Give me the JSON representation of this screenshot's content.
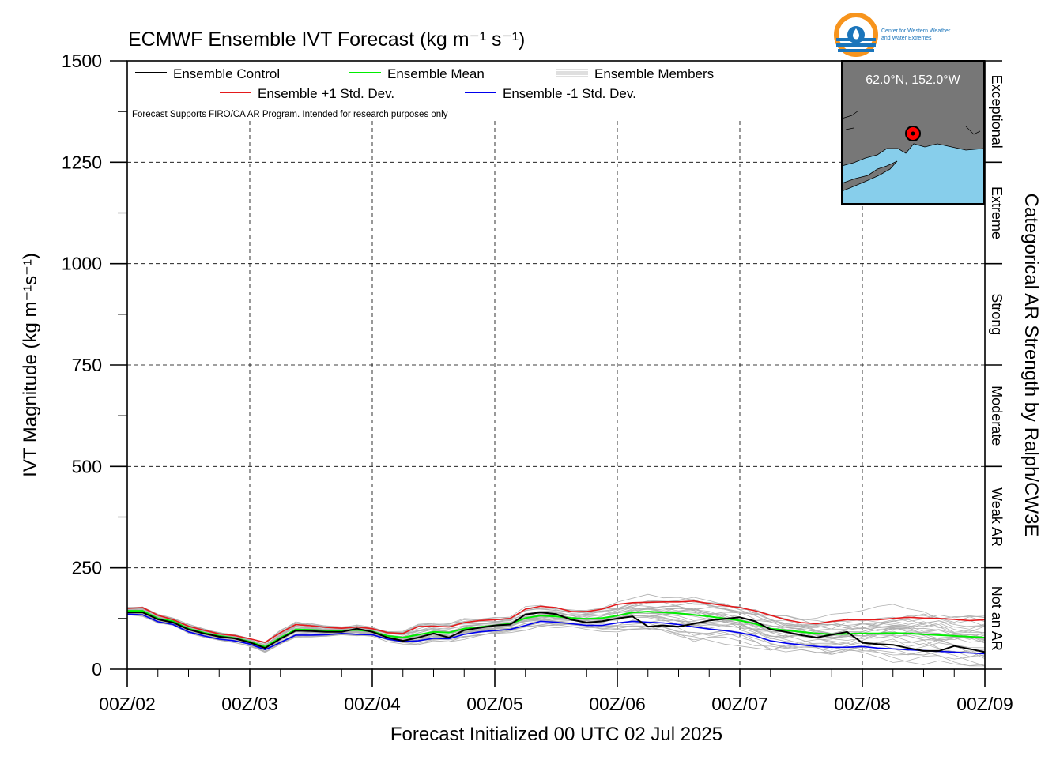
{
  "chart_data": {
    "type": "line",
    "title": "ECMWF Ensemble IVT Forecast (kg m⁻¹ s⁻¹)",
    "xlabel": "Forecast Initialized 00 UTC 02 Jul 2025",
    "ylabel": "IVT Magnitude (kg m⁻¹s⁻¹)",
    "right_label": "Categorical AR Strength by Ralph/CW3E",
    "note": "Forecast Supports FIRO/CA AR Program. Intended for research purposes only",
    "ylim": [
      0,
      1500
    ],
    "xlim": [
      0,
      168
    ],
    "y_ticks": [
      0,
      250,
      500,
      750,
      1000,
      1250,
      1500
    ],
    "x_ticks": [
      {
        "value": 0,
        "label": "00Z/02"
      },
      {
        "value": 24,
        "label": "00Z/03"
      },
      {
        "value": 48,
        "label": "00Z/04"
      },
      {
        "value": 72,
        "label": "00Z/05"
      },
      {
        "value": 96,
        "label": "00Z/06"
      },
      {
        "value": 120,
        "label": "00Z/07"
      },
      {
        "value": 144,
        "label": "00Z/08"
      },
      {
        "value": 168,
        "label": "00Z/09"
      }
    ],
    "grid": true,
    "categories": [
      {
        "label": "Not an AR",
        "from": 0,
        "to": 250
      },
      {
        "label": "Weak AR",
        "from": 250,
        "to": 500
      },
      {
        "label": "Moderate",
        "from": 500,
        "to": 750
      },
      {
        "label": "Strong",
        "from": 750,
        "to": 1000
      },
      {
        "label": "Extreme",
        "from": 1000,
        "to": 1250
      },
      {
        "label": "Exceptional",
        "from": 1250,
        "to": 1500
      }
    ],
    "legend": [
      {
        "name": "Ensemble Control",
        "color": "#000000"
      },
      {
        "name": "Ensemble Mean",
        "color": "#00ee00"
      },
      {
        "name": "Ensemble Members",
        "color": "#aaaaaa"
      },
      {
        "name": "Ensemble +1 Std. Dev.",
        "color": "#e41a1c"
      },
      {
        "name": "Ensemble -1 Std. Dev.",
        "color": "#0000ee"
      }
    ],
    "series": [
      {
        "name": "Ensemble Control",
        "color": "#000000",
        "width": 2,
        "x": [
          0,
          3,
          6,
          9,
          12,
          15,
          18,
          21,
          24,
          27,
          30,
          33,
          36,
          39,
          42,
          45,
          48,
          51,
          54,
          57,
          60,
          63,
          66,
          69,
          72,
          75,
          78,
          81,
          84,
          87,
          90,
          93,
          96,
          99,
          102,
          105,
          108,
          111,
          114,
          117,
          120,
          123,
          126,
          129,
          132,
          135,
          138,
          141,
          144,
          147,
          150,
          153,
          156,
          159,
          162,
          165,
          168
        ],
        "values": [
          140,
          140,
          123,
          115,
          98,
          88,
          80,
          76,
          66,
          52,
          75,
          95,
          94,
          92,
          92,
          100,
          92,
          78,
          70,
          78,
          88,
          78,
          96,
          102,
          108,
          110,
          135,
          140,
          136,
          122,
          115,
          118,
          125,
          130,
          105,
          108,
          105,
          112,
          120,
          124,
          128,
          118,
          98,
          92,
          84,
          78,
          85,
          92,
          65,
          62,
          60,
          52,
          45,
          45,
          57,
          50,
          42
        ]
      },
      {
        "name": "Ensemble Mean",
        "color": "#00ee00",
        "width": 2,
        "x": [
          0,
          3,
          6,
          9,
          12,
          15,
          18,
          21,
          24,
          27,
          30,
          33,
          36,
          39,
          42,
          45,
          48,
          51,
          54,
          57,
          60,
          63,
          66,
          69,
          72,
          75,
          78,
          81,
          84,
          87,
          90,
          93,
          96,
          99,
          102,
          105,
          108,
          111,
          114,
          117,
          120,
          123,
          126,
          129,
          132,
          135,
          138,
          141,
          144,
          147,
          150,
          153,
          156,
          159,
          162,
          165,
          168
        ],
        "values": [
          144,
          144,
          125,
          118,
          100,
          90,
          82,
          77,
          68,
          55,
          78,
          98,
          97,
          95,
          95,
          97,
          93,
          82,
          78,
          85,
          92,
          90,
          100,
          104,
          108,
          112,
          126,
          132,
          130,
          126,
          124,
          126,
          132,
          140,
          142,
          140,
          138,
          134,
          130,
          125,
          120,
          112,
          100,
          96,
          92,
          88,
          86,
          87,
          88,
          88,
          89,
          88,
          86,
          84,
          82,
          80,
          78
        ]
      },
      {
        "name": "Ensemble +1 Std. Dev.",
        "color": "#e41a1c",
        "width": 1.6,
        "x": [
          0,
          3,
          6,
          9,
          12,
          15,
          18,
          21,
          24,
          27,
          30,
          33,
          36,
          39,
          42,
          45,
          48,
          51,
          54,
          57,
          60,
          63,
          66,
          69,
          72,
          75,
          78,
          81,
          84,
          87,
          90,
          93,
          96,
          99,
          102,
          105,
          108,
          111,
          114,
          117,
          120,
          123,
          126,
          129,
          132,
          135,
          138,
          141,
          144,
          147,
          150,
          153,
          156,
          159,
          162,
          165,
          168
        ],
        "values": [
          150,
          152,
          133,
          122,
          106,
          96,
          87,
          83,
          75,
          66,
          90,
          110,
          107,
          103,
          101,
          104,
          100,
          90,
          88,
          105,
          106,
          104,
          115,
          120,
          122,
          125,
          148,
          155,
          152,
          142,
          142,
          148,
          160,
          164,
          165,
          166,
          166,
          168,
          162,
          157,
          152,
          144,
          133,
          122,
          115,
          112,
          118,
          122,
          122,
          122,
          125,
          128,
          126,
          125,
          123,
          120,
          122
        ]
      },
      {
        "name": "Ensemble -1 Std. Dev.",
        "color": "#0000ee",
        "width": 1.6,
        "x": [
          0,
          3,
          6,
          9,
          12,
          15,
          18,
          21,
          24,
          27,
          30,
          33,
          36,
          39,
          42,
          45,
          48,
          51,
          54,
          57,
          60,
          63,
          66,
          69,
          72,
          75,
          78,
          81,
          84,
          87,
          90,
          93,
          96,
          99,
          102,
          105,
          108,
          111,
          114,
          117,
          120,
          123,
          126,
          129,
          132,
          135,
          138,
          141,
          144,
          147,
          150,
          153,
          156,
          159,
          162,
          165,
          168
        ],
        "values": [
          136,
          134,
          117,
          110,
          92,
          82,
          74,
          70,
          62,
          48,
          66,
          84,
          84,
          85,
          88,
          86,
          85,
          74,
          68,
          70,
          76,
          75,
          86,
          92,
          95,
          98,
          108,
          118,
          116,
          112,
          108,
          108,
          114,
          118,
          116,
          114,
          110,
          104,
          99,
          95,
          90,
          82,
          70,
          64,
          60,
          56,
          54,
          54,
          56,
          52,
          50,
          48,
          46,
          44,
          42,
          40,
          38
        ]
      }
    ],
    "members": {
      "count": 30,
      "color": "#b0b0b0",
      "spread_at_end": [
        20,
        250
      ]
    }
  },
  "inset": {
    "location_label": "62.0°N, 152.0°W",
    "land_color": "#777777",
    "water_color": "#87ceeb",
    "marker_color": "#ff0000"
  },
  "logo": {
    "line1": "Center for Western Weather",
    "line2": "and Water Extremes"
  }
}
